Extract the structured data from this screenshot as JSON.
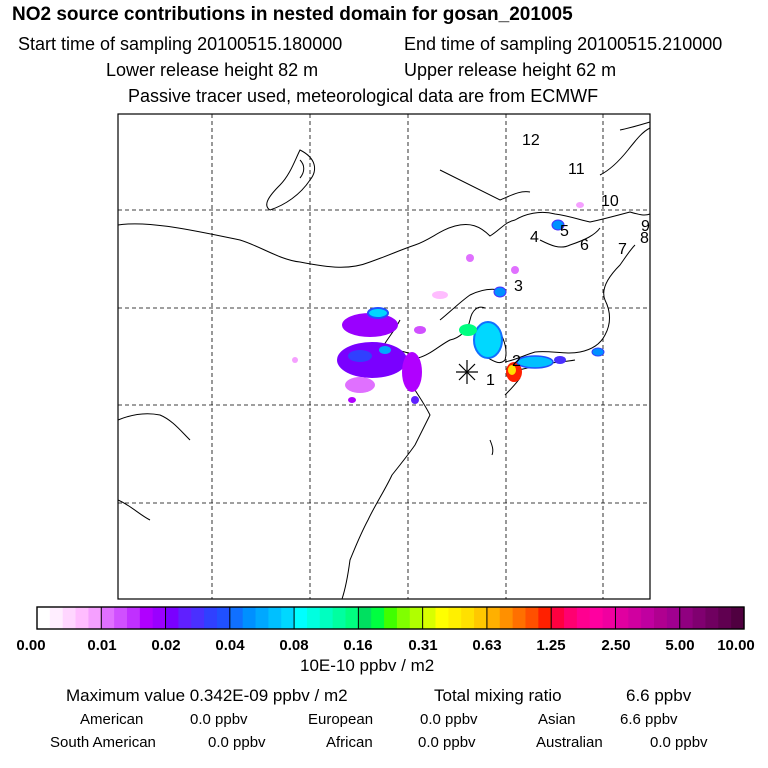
{
  "header": {
    "title": "NO2 source contributions in nested domain for gosan_201005",
    "start_label": "Start time of sampling 20100515.180000",
    "end_label": "End time of sampling 20100515.210000",
    "lower_label": "Lower release height   82 m",
    "upper_label": "Upper release height   62 m",
    "tracer_label": "Passive tracer used, meteorological data are from ECMWF"
  },
  "map": {
    "site_numbers": [
      "1",
      "2",
      "3",
      "4",
      "5",
      "6",
      "7",
      "8",
      "9",
      "10",
      "11",
      "12"
    ],
    "colors": {
      "land_border": "#000000",
      "grid": "#000000"
    }
  },
  "colorbar": {
    "tick_labels": [
      "0.00",
      "0.01",
      "0.02",
      "0.04",
      "0.08",
      "0.16",
      "0.31",
      "0.63",
      "1.25",
      "2.50",
      "5.00",
      "10.00"
    ],
    "colors": [
      "#ffffff",
      "#ffeeff",
      "#ffd6ff",
      "#ffbdff",
      "#f5a0ff",
      "#e070ff",
      "#d050ff",
      "#c030ff",
      "#b000ff",
      "#9a00ff",
      "#7a00ff",
      "#6020ff",
      "#4a30ff",
      "#3040ff",
      "#2050ff",
      "#1070ff",
      "#0090ff",
      "#00a8ff",
      "#00c0ff",
      "#00d8ff",
      "#00ffff",
      "#00ffe0",
      "#00ffc0",
      "#00ffa0",
      "#00ff80",
      "#00e060",
      "#00ff40",
      "#40ff00",
      "#80ff00",
      "#b0ff00",
      "#d8ff00",
      "#ffff00",
      "#fff000",
      "#ffe000",
      "#ffc800",
      "#ffb000",
      "#ff9000",
      "#ff7000",
      "#ff5000",
      "#ff2000",
      "#ff0040",
      "#ff0070",
      "#ff0090",
      "#ff00a0",
      "#f000a0",
      "#e000a0",
      "#d000a0",
      "#c000a0",
      "#b00090",
      "#a00090",
      "#900080",
      "#800070",
      "#700060",
      "#600050",
      "#500040"
    ],
    "unit": "10E-10 ppbv / m2"
  },
  "stats": {
    "maximum_label": "Maximum value  0.342E-09 ppbv / m2",
    "total_label": "Total mixing ratio",
    "total_value": "6.6 ppbv",
    "regions": [
      {
        "name": "American",
        "value": "0.0 ppbv"
      },
      {
        "name": "European",
        "value": "0.0 ppbv"
      },
      {
        "name": "Asian",
        "value": "6.6 ppbv"
      },
      {
        "name": "South American",
        "value": "0.0 ppbv"
      },
      {
        "name": "African",
        "value": "0.0 ppbv"
      },
      {
        "name": "Australian",
        "value": "0.0 ppbv"
      }
    ]
  }
}
